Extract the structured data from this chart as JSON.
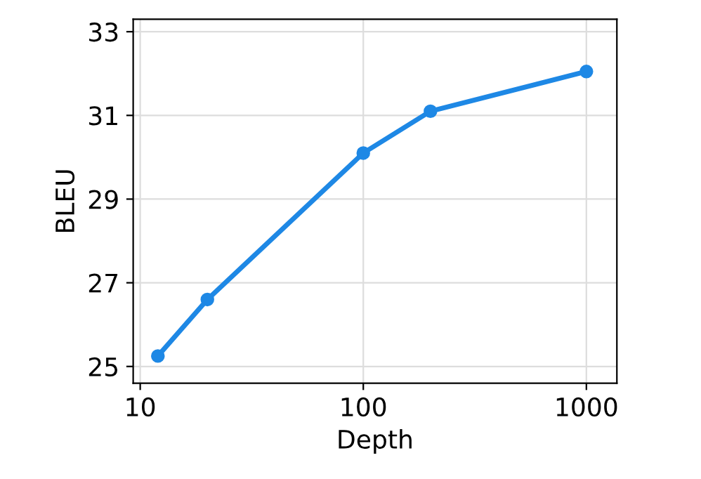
{
  "chart_data": {
    "type": "line",
    "xlabel": "Depth",
    "ylabel": "BLEU",
    "log": "x",
    "x": [
      12,
      20,
      100,
      200,
      1000
    ],
    "series": [
      {
        "color": "#1e88e5",
        "values": [
          25.25,
          26.6,
          30.1,
          31.1,
          32.05
        ]
      }
    ],
    "xlim": [
      9.3,
      1370
    ],
    "xticks": [
      10,
      100,
      1000
    ],
    "ylim": [
      24.6,
      33.3
    ],
    "yticks": [
      25,
      27,
      29,
      31,
      33
    ],
    "grid": true,
    "marker": "circle",
    "line_style": "solid"
  }
}
